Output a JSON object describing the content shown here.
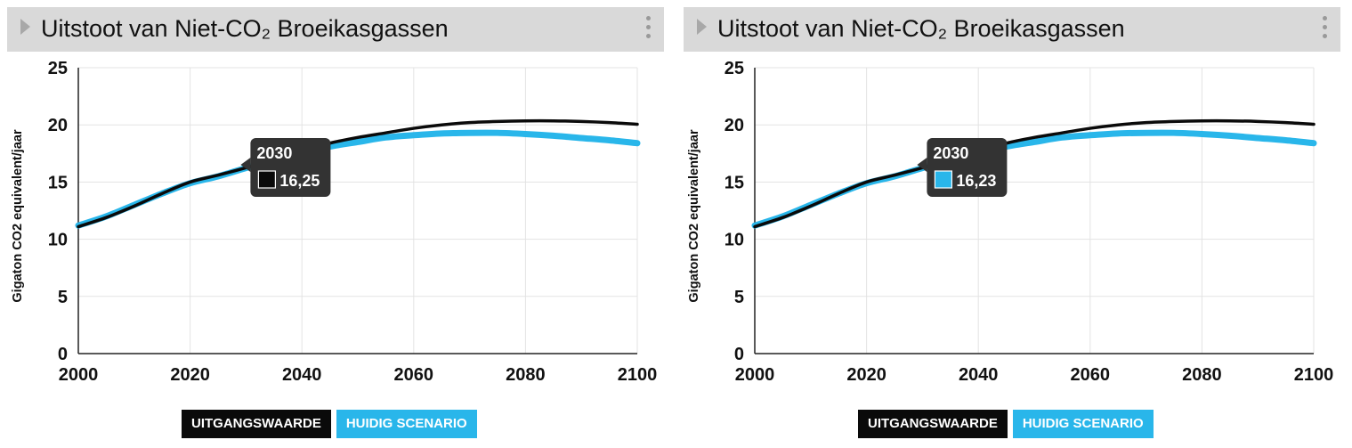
{
  "chart_title": "Uitstoot van Niet-CO₂ Broeikasgassen",
  "colors": {
    "baseline": "#0a0a0a",
    "current": "#29b6ea",
    "header_bg": "#d9d9d9",
    "tooltip_bg": "#333333"
  },
  "legend": {
    "baseline": "UITGANGSWAARDE",
    "current": "HUIDIG SCENARIO"
  },
  "tooltips": [
    {
      "year": "2030",
      "value": "16,25",
      "series": "baseline"
    },
    {
      "year": "2030",
      "value": "16,23",
      "series": "current"
    }
  ],
  "chart_data": [
    {
      "type": "line",
      "title": "Uitstoot van Niet-CO₂ Broeikasgassen",
      "xlabel": "",
      "ylabel": "Gigaton CO2 equivalent/jaar",
      "xlim": [
        2000,
        2100
      ],
      "ylim": [
        0,
        25
      ],
      "xticks": [
        2000,
        2020,
        2040,
        2060,
        2080,
        2100
      ],
      "yticks": [
        0,
        5,
        10,
        15,
        20,
        25
      ],
      "grid": true,
      "legend_position": "bottom",
      "x": [
        2000,
        2005,
        2010,
        2015,
        2020,
        2025,
        2030,
        2035,
        2040,
        2045,
        2050,
        2055,
        2060,
        2065,
        2070,
        2075,
        2080,
        2085,
        2090,
        2095,
        2100
      ],
      "series": [
        {
          "name": "UITGANGSWAARDE",
          "values": [
            11.1,
            11.9,
            12.9,
            14.0,
            15.0,
            15.6,
            16.25,
            17.0,
            17.7,
            18.4,
            18.9,
            19.3,
            19.7,
            20.0,
            20.2,
            20.3,
            20.35,
            20.35,
            20.3,
            20.2,
            20.05
          ]
        },
        {
          "name": "HUIDIG SCENARIO",
          "values": [
            11.2,
            12.0,
            13.0,
            14.0,
            14.9,
            15.5,
            16.23,
            16.9,
            17.5,
            18.1,
            18.5,
            18.9,
            19.1,
            19.25,
            19.3,
            19.3,
            19.2,
            19.05,
            18.85,
            18.65,
            18.4
          ]
        }
      ]
    },
    {
      "type": "line",
      "title": "Uitstoot van Niet-CO₂ Broeikasgassen",
      "xlabel": "",
      "ylabel": "Gigaton CO2 equivalent/jaar",
      "xlim": [
        2000,
        2100
      ],
      "ylim": [
        0,
        25
      ],
      "xticks": [
        2000,
        2020,
        2040,
        2060,
        2080,
        2100
      ],
      "yticks": [
        0,
        5,
        10,
        15,
        20,
        25
      ],
      "grid": true,
      "legend_position": "bottom",
      "x": [
        2000,
        2005,
        2010,
        2015,
        2020,
        2025,
        2030,
        2035,
        2040,
        2045,
        2050,
        2055,
        2060,
        2065,
        2070,
        2075,
        2080,
        2085,
        2090,
        2095,
        2100
      ],
      "series": [
        {
          "name": "UITGANGSWAARDE",
          "values": [
            11.1,
            11.9,
            12.9,
            14.0,
            15.0,
            15.6,
            16.25,
            17.0,
            17.7,
            18.4,
            18.9,
            19.3,
            19.7,
            20.0,
            20.2,
            20.3,
            20.35,
            20.35,
            20.3,
            20.2,
            20.05
          ]
        },
        {
          "name": "HUIDIG SCENARIO",
          "values": [
            11.2,
            12.0,
            13.0,
            14.0,
            14.9,
            15.5,
            16.23,
            16.9,
            17.5,
            18.1,
            18.5,
            18.9,
            19.1,
            19.25,
            19.3,
            19.3,
            19.2,
            19.05,
            18.85,
            18.65,
            18.4
          ]
        }
      ]
    }
  ]
}
